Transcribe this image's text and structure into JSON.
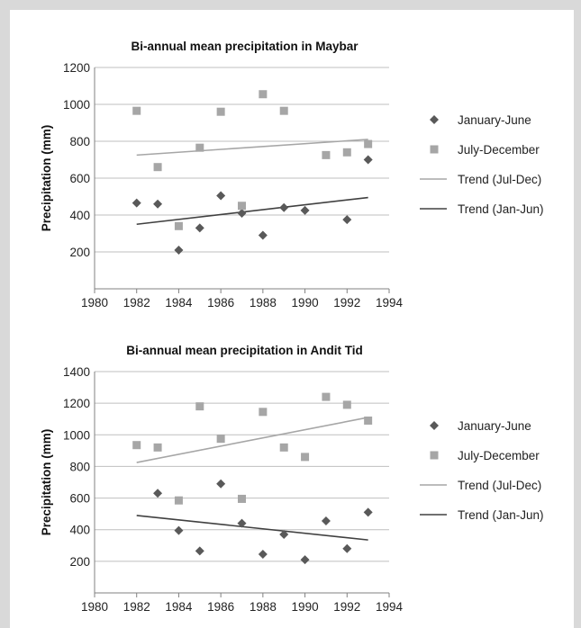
{
  "colors": {
    "jan_jun": "#595959",
    "jul_dec": "#a6a6a6",
    "trend_jul_dec": "#a6a6a6",
    "trend_jan_jun": "#404040",
    "gridline": "#bfbfbf",
    "axis": "#808080",
    "frame": "#d9d9d9"
  },
  "chart_data": [
    {
      "type": "scatter",
      "title": "Bi-annual mean precipitation in Maybar",
      "xlabel": "",
      "ylabel": "Precipitation (mm)",
      "xlim": [
        1980,
        1994
      ],
      "ylim": [
        0,
        1200
      ],
      "xticks": [
        1980,
        1982,
        1984,
        1986,
        1988,
        1990,
        1992,
        1994
      ],
      "yticks": [
        200,
        400,
        600,
        800,
        1000,
        1200
      ],
      "grid": true,
      "legend_position": "right",
      "series": [
        {
          "name": "January-June",
          "marker": "diamond",
          "points": [
            [
              1982,
              465
            ],
            [
              1983,
              460
            ],
            [
              1984,
              210
            ],
            [
              1985,
              330
            ],
            [
              1986,
              505
            ],
            [
              1987,
              410
            ],
            [
              1988,
              290
            ],
            [
              1989,
              440
            ],
            [
              1990,
              425
            ],
            [
              1992,
              375
            ],
            [
              1993,
              700
            ]
          ]
        },
        {
          "name": "July-December",
          "marker": "square",
          "points": [
            [
              1982,
              965
            ],
            [
              1983,
              660
            ],
            [
              1984,
              340
            ],
            [
              1985,
              765
            ],
            [
              1986,
              960
            ],
            [
              1987,
              450
            ],
            [
              1988,
              1055
            ],
            [
              1989,
              965
            ],
            [
              1991,
              725
            ],
            [
              1992,
              740
            ],
            [
              1993,
              785
            ]
          ]
        }
      ],
      "trends": [
        {
          "name": "Trend (Jul-Dec)",
          "line": [
            [
              1982,
              725
            ],
            [
              1993,
              810
            ]
          ]
        },
        {
          "name": "Trend (Jan-Jun)",
          "line": [
            [
              1982,
              350
            ],
            [
              1993,
              495
            ]
          ]
        }
      ]
    },
    {
      "type": "scatter",
      "title": "Bi-annual mean precipitation in Andit Tid",
      "xlabel": "",
      "ylabel": "Precipitation (mm)",
      "xlim": [
        1980,
        1994
      ],
      "ylim": [
        0,
        1400
      ],
      "xticks": [
        1980,
        1982,
        1984,
        1986,
        1988,
        1990,
        1992,
        1994
      ],
      "yticks": [
        200,
        400,
        600,
        800,
        1000,
        1200,
        1400
      ],
      "grid": true,
      "legend_position": "right",
      "series": [
        {
          "name": "January-June",
          "marker": "diamond",
          "points": [
            [
              1983,
              630
            ],
            [
              1984,
              395
            ],
            [
              1985,
              265
            ],
            [
              1986,
              690
            ],
            [
              1987,
              440
            ],
            [
              1988,
              245
            ],
            [
              1989,
              370
            ],
            [
              1990,
              210
            ],
            [
              1991,
              455
            ],
            [
              1992,
              280
            ],
            [
              1993,
              510
            ]
          ]
        },
        {
          "name": "July-December",
          "marker": "square",
          "points": [
            [
              1982,
              935
            ],
            [
              1983,
              920
            ],
            [
              1984,
              585
            ],
            [
              1985,
              1180
            ],
            [
              1986,
              975
            ],
            [
              1987,
              595
            ],
            [
              1988,
              1145
            ],
            [
              1989,
              920
            ],
            [
              1990,
              860
            ],
            [
              1991,
              1240
            ],
            [
              1992,
              1190
            ],
            [
              1993,
              1090
            ]
          ]
        }
      ],
      "trends": [
        {
          "name": "Trend (Jul-Dec)",
          "line": [
            [
              1982,
              825
            ],
            [
              1993,
              1110
            ]
          ]
        },
        {
          "name": "Trend (Jan-Jun)",
          "line": [
            [
              1982,
              490
            ],
            [
              1993,
              335
            ]
          ]
        }
      ]
    }
  ]
}
